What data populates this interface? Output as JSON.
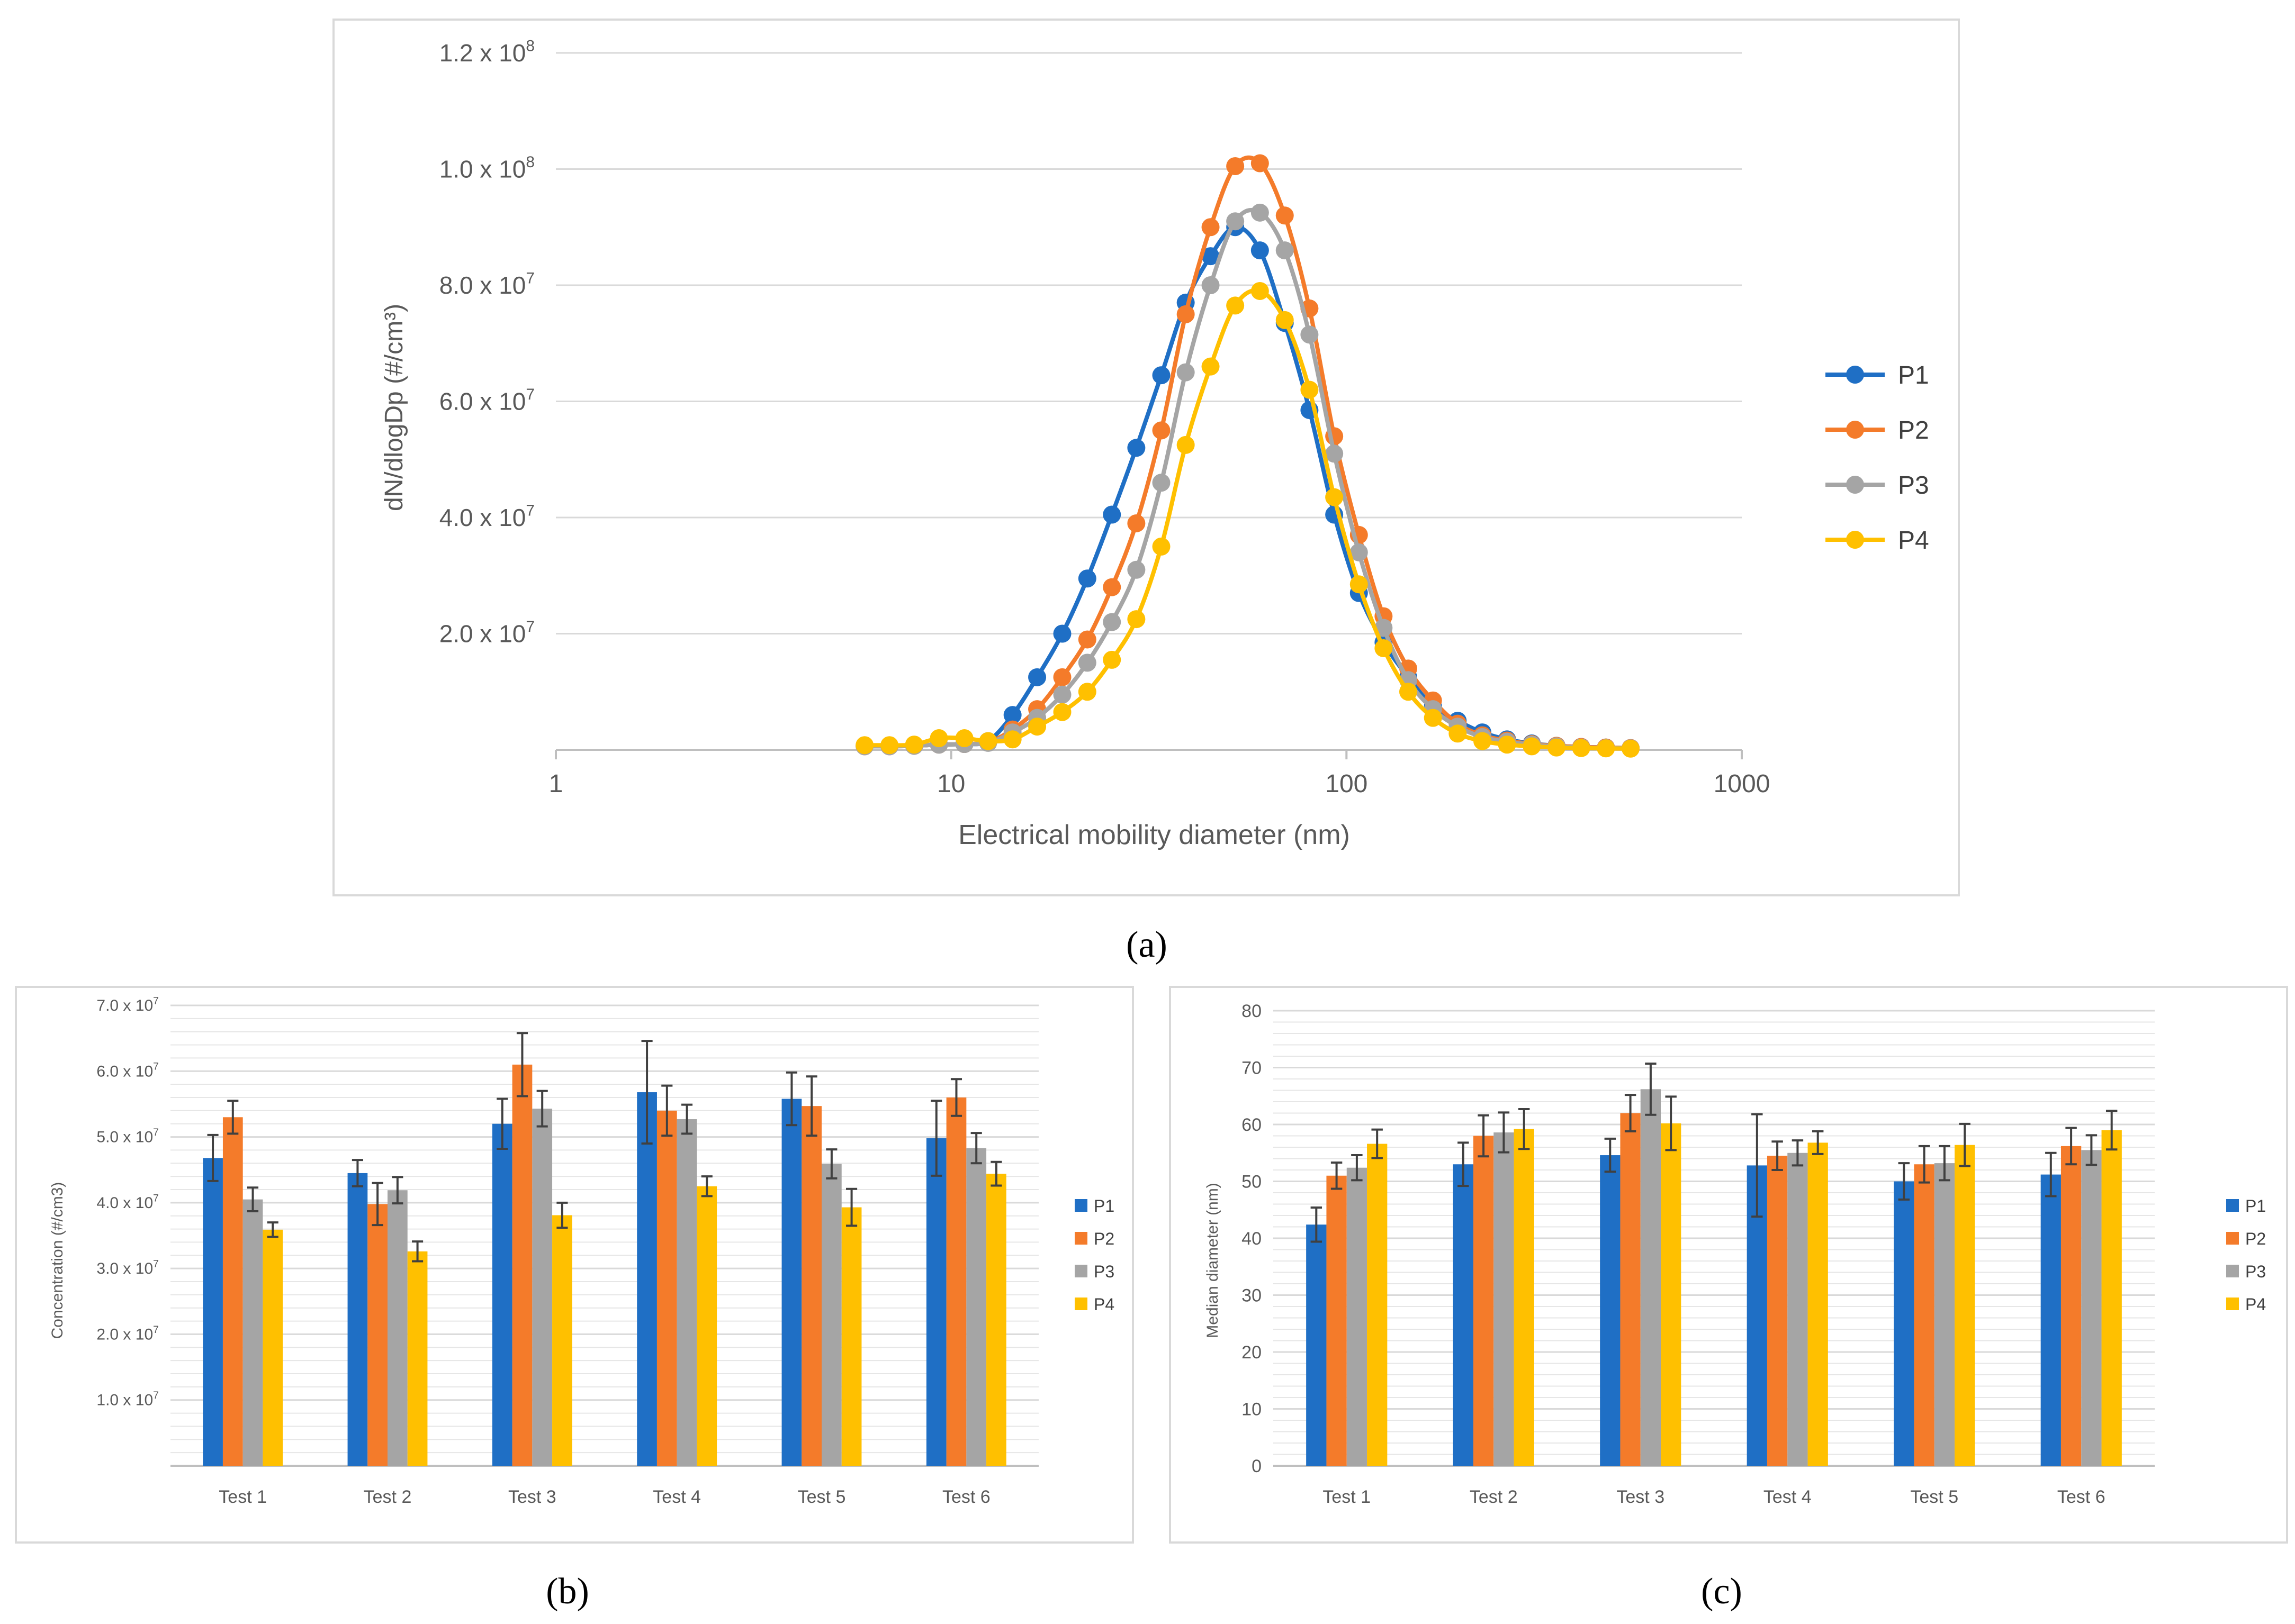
{
  "chart_data": [
    {
      "id": "a",
      "type": "line",
      "caption": "(a)",
      "xlabel": "Electrical mobility diameter (nm)",
      "ylabel": "dN/dlogDp (#/cm³)",
      "xscale": "log",
      "xlim": [
        1,
        1000
      ],
      "ylim": [
        0,
        120000000
      ],
      "xticks": [
        {
          "v": 1,
          "label": "1"
        },
        {
          "v": 10,
          "label": "10"
        },
        {
          "v": 100,
          "label": "100"
        },
        {
          "v": 1000,
          "label": "1000"
        }
      ],
      "yticks": [
        {
          "v": 20000000,
          "mant": "2.0 x 10",
          "exp": "7"
        },
        {
          "v": 40000000,
          "mant": "4.0 x 10",
          "exp": "7"
        },
        {
          "v": 60000000,
          "mant": "6.0 x 10",
          "exp": "7"
        },
        {
          "v": 80000000,
          "mant": "8.0 x 10",
          "exp": "7"
        },
        {
          "v": 100000000,
          "mant": "1.0 x 10",
          "exp": "8"
        },
        {
          "v": 120000000,
          "mant": "1.2 x 10",
          "exp": "8"
        }
      ],
      "grid": true,
      "legend_position": "right",
      "x": [
        6.04,
        6.98,
        8.06,
        9.31,
        10.8,
        12.4,
        14.3,
        16.5,
        19.1,
        22.1,
        25.5,
        29.4,
        34.0,
        39.2,
        45.3,
        52.3,
        60.4,
        69.8,
        80.6,
        93.1,
        107.5,
        124.1,
        143.3,
        165.5,
        191.1,
        220.7,
        254.8,
        294.3,
        339.8,
        392.4,
        453.2,
        523.3
      ],
      "series": [
        {
          "name": "P1",
          "color": "#1f6fc5",
          "values": [
            700000,
            700000,
            700000,
            900000,
            1000000,
            1500000,
            6000000,
            12500000,
            20000000,
            29500000,
            40500000,
            52000000,
            64500000,
            77000000,
            85000000,
            90000000,
            86000000,
            73500000,
            58500000,
            40500000,
            27000000,
            18500000,
            12500000,
            7500000,
            5000000,
            3000000,
            1800000,
            1100000,
            700000,
            500000,
            400000,
            300000
          ]
        },
        {
          "name": "P2",
          "color": "#f47b2a",
          "values": [
            600000,
            600000,
            700000,
            900000,
            1000000,
            1300000,
            3500000,
            7000000,
            12500000,
            19000000,
            28000000,
            39000000,
            55000000,
            75000000,
            90000000,
            100500000,
            101000000,
            92000000,
            76000000,
            54000000,
            37000000,
            23000000,
            14000000,
            8500000,
            4500000,
            2500000,
            1600000,
            1000000,
            700000,
            500000,
            400000,
            300000
          ]
        },
        {
          "name": "P3",
          "color": "#a5a5a5",
          "values": [
            600000,
            600000,
            700000,
            900000,
            1000000,
            1200000,
            3000000,
            5500000,
            9500000,
            15000000,
            22000000,
            31000000,
            46000000,
            65000000,
            80000000,
            91000000,
            92500000,
            86000000,
            71500000,
            51000000,
            34000000,
            21000000,
            12000000,
            7000000,
            4000000,
            2200000,
            1400000,
            900000,
            600000,
            400000,
            300000,
            250000
          ]
        },
        {
          "name": "P4",
          "color": "#ffc000",
          "values": [
            800000,
            800000,
            900000,
            2000000,
            2000000,
            1500000,
            1800000,
            4000000,
            6500000,
            10000000,
            15500000,
            22500000,
            35000000,
            52500000,
            66000000,
            76500000,
            79000000,
            74000000,
            62000000,
            43500000,
            28500000,
            17500000,
            10000000,
            5500000,
            2800000,
            1500000,
            900000,
            600000,
            400000,
            300000,
            250000,
            200000
          ]
        }
      ]
    },
    {
      "id": "b",
      "type": "bar",
      "caption": "(b)",
      "ylabel": "Concentration (#/cm3)",
      "ylim": [
        0,
        70000000
      ],
      "yticks": [
        {
          "v": 10000000,
          "mant": "1.0 x 10",
          "exp": "7"
        },
        {
          "v": 20000000,
          "mant": "2.0 x 10",
          "exp": "7"
        },
        {
          "v": 30000000,
          "mant": "3.0 x 10",
          "exp": "7"
        },
        {
          "v": 40000000,
          "mant": "4.0 x 10",
          "exp": "7"
        },
        {
          "v": 50000000,
          "mant": "5.0 x 10",
          "exp": "7"
        },
        {
          "v": 60000000,
          "mant": "6.0 x 10",
          "exp": "7"
        },
        {
          "v": 70000000,
          "mant": "7.0 x 10",
          "exp": "7"
        }
      ],
      "grid": true,
      "legend_position": "right",
      "categories": [
        "Test 1",
        "Test 2",
        "Test 3",
        "Test 4",
        "Test 5",
        "Test 6"
      ],
      "series": [
        {
          "name": "P1",
          "color": "#1f6fc5",
          "values": [
            46800000,
            44500000,
            52000000,
            56800000,
            55800000,
            49800000
          ],
          "errors": [
            3500000,
            2000000,
            3800000,
            7800000,
            4000000,
            5700000
          ]
        },
        {
          "name": "P2",
          "color": "#f47b2a",
          "values": [
            53000000,
            39800000,
            61000000,
            54000000,
            54700000,
            56000000
          ],
          "errors": [
            2500000,
            3200000,
            4800000,
            3800000,
            4500000,
            2800000
          ]
        },
        {
          "name": "P3",
          "color": "#a5a5a5",
          "values": [
            40500000,
            41900000,
            54300000,
            52700000,
            45900000,
            48300000
          ],
          "errors": [
            1800000,
            2000000,
            2700000,
            2200000,
            2200000,
            2300000
          ]
        },
        {
          "name": "P4",
          "color": "#ffc000",
          "values": [
            35900000,
            32600000,
            38100000,
            42500000,
            39300000,
            44400000
          ],
          "errors": [
            1100000,
            1500000,
            1900000,
            1500000,
            2800000,
            1800000
          ]
        }
      ]
    },
    {
      "id": "c",
      "type": "bar",
      "caption": "(c)",
      "ylabel": "Median diameter (nm)",
      "ylim": [
        0,
        80
      ],
      "yticks": [
        {
          "v": 0,
          "label": "0"
        },
        {
          "v": 10,
          "label": "10"
        },
        {
          "v": 20,
          "label": "20"
        },
        {
          "v": 30,
          "label": "30"
        },
        {
          "v": 40,
          "label": "40"
        },
        {
          "v": 50,
          "label": "50"
        },
        {
          "v": 60,
          "label": "60"
        },
        {
          "v": 70,
          "label": "70"
        },
        {
          "v": 80,
          "label": "80"
        }
      ],
      "grid": true,
      "legend_position": "right",
      "categories": [
        "Test 1",
        "Test 2",
        "Test 3",
        "Test 4",
        "Test 5",
        "Test 6"
      ],
      "series": [
        {
          "name": "P1",
          "color": "#1f6fc5",
          "values": [
            42.4,
            53.0,
            54.6,
            52.8,
            50.0,
            51.2
          ],
          "errors": [
            3.0,
            3.8,
            2.9,
            9.0,
            3.2,
            3.8
          ]
        },
        {
          "name": "P2",
          "color": "#f47b2a",
          "values": [
            51.0,
            58.0,
            62.0,
            54.5,
            53.0,
            56.2
          ],
          "errors": [
            2.3,
            3.6,
            3.2,
            2.5,
            3.2,
            3.2
          ]
        },
        {
          "name": "P3",
          "color": "#a5a5a5",
          "values": [
            52.4,
            58.6,
            66.2,
            55.0,
            53.2,
            55.5
          ],
          "errors": [
            2.2,
            3.5,
            4.5,
            2.2,
            3.0,
            2.6
          ]
        },
        {
          "name": "P4",
          "color": "#ffc000",
          "values": [
            56.6,
            59.2,
            60.2,
            56.8,
            56.4,
            59.0
          ],
          "errors": [
            2.5,
            3.5,
            4.7,
            2.0,
            3.7,
            3.4
          ]
        }
      ]
    }
  ]
}
